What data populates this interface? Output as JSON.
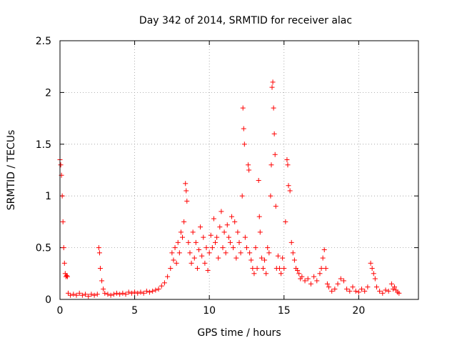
{
  "chart_data": {
    "type": "scatter",
    "title": "Day 342 of 2014, SRMTID for receiver alac",
    "xlabel": "GPS time / hours",
    "ylabel": "SRMTID / TECUs",
    "xlim": [
      0,
      24
    ],
    "ylim": [
      0,
      2.5
    ],
    "xticks": [
      0,
      5,
      10,
      15,
      20
    ],
    "yticks": [
      0,
      0.5,
      1,
      1.5,
      2,
      2.5
    ],
    "xtick_labels": [
      "0",
      "5",
      "10",
      "15",
      "20"
    ],
    "ytick_labels": [
      "0",
      "0.5",
      "1",
      "1.5",
      "2",
      "2.5"
    ],
    "grid": true,
    "marker": "+",
    "series": [
      {
        "name": "SRMTID",
        "color": "#ff0000",
        "points": [
          [
            0.0,
            1.35
          ],
          [
            0.05,
            1.3
          ],
          [
            0.1,
            1.2
          ],
          [
            0.15,
            1.0
          ],
          [
            0.2,
            0.75
          ],
          [
            0.25,
            0.5
          ],
          [
            0.3,
            0.35
          ],
          [
            0.35,
            0.25
          ],
          [
            0.4,
            0.22
          ],
          [
            0.45,
            0.23
          ],
          [
            0.5,
            0.22
          ],
          [
            0.55,
            0.06
          ],
          [
            0.7,
            0.04
          ],
          [
            0.9,
            0.05
          ],
          [
            1.1,
            0.04
          ],
          [
            1.3,
            0.06
          ],
          [
            1.5,
            0.04
          ],
          [
            1.7,
            0.05
          ],
          [
            1.9,
            0.03
          ],
          [
            2.1,
            0.05
          ],
          [
            2.3,
            0.04
          ],
          [
            2.5,
            0.05
          ],
          [
            2.6,
            0.5
          ],
          [
            2.65,
            0.45
          ],
          [
            2.7,
            0.3
          ],
          [
            2.8,
            0.18
          ],
          [
            2.9,
            0.1
          ],
          [
            3.0,
            0.06
          ],
          [
            3.2,
            0.05
          ],
          [
            3.4,
            0.04
          ],
          [
            3.6,
            0.05
          ],
          [
            3.8,
            0.06
          ],
          [
            4.0,
            0.05
          ],
          [
            4.2,
            0.06
          ],
          [
            4.4,
            0.05
          ],
          [
            4.6,
            0.07
          ],
          [
            4.8,
            0.06
          ],
          [
            5.0,
            0.07
          ],
          [
            5.2,
            0.06
          ],
          [
            5.4,
            0.07
          ],
          [
            5.6,
            0.06
          ],
          [
            5.8,
            0.08
          ],
          [
            6.0,
            0.07
          ],
          [
            6.2,
            0.08
          ],
          [
            6.4,
            0.09
          ],
          [
            6.6,
            0.1
          ],
          [
            6.8,
            0.13
          ],
          [
            7.0,
            0.16
          ],
          [
            7.2,
            0.22
          ],
          [
            7.4,
            0.3
          ],
          [
            7.5,
            0.45
          ],
          [
            7.6,
            0.38
          ],
          [
            7.7,
            0.5
          ],
          [
            7.8,
            0.35
          ],
          [
            7.9,
            0.55
          ],
          [
            8.0,
            0.45
          ],
          [
            8.1,
            0.65
          ],
          [
            8.2,
            0.6
          ],
          [
            8.3,
            0.75
          ],
          [
            8.4,
            1.12
          ],
          [
            8.45,
            1.05
          ],
          [
            8.5,
            0.95
          ],
          [
            8.6,
            0.55
          ],
          [
            8.7,
            0.45
          ],
          [
            8.8,
            0.35
          ],
          [
            8.9,
            0.65
          ],
          [
            9.0,
            0.4
          ],
          [
            9.1,
            0.55
          ],
          [
            9.2,
            0.3
          ],
          [
            9.3,
            0.48
          ],
          [
            9.4,
            0.7
          ],
          [
            9.5,
            0.42
          ],
          [
            9.6,
            0.6
          ],
          [
            9.7,
            0.35
          ],
          [
            9.8,
            0.5
          ],
          [
            9.9,
            0.28
          ],
          [
            10.0,
            0.45
          ],
          [
            10.1,
            0.62
          ],
          [
            10.2,
            0.5
          ],
          [
            10.3,
            0.78
          ],
          [
            10.4,
            0.55
          ],
          [
            10.5,
            0.6
          ],
          [
            10.6,
            0.4
          ],
          [
            10.7,
            0.7
          ],
          [
            10.8,
            0.85
          ],
          [
            10.9,
            0.5
          ],
          [
            11.0,
            0.65
          ],
          [
            11.1,
            0.45
          ],
          [
            11.2,
            0.72
          ],
          [
            11.3,
            0.6
          ],
          [
            11.4,
            0.55
          ],
          [
            11.5,
            0.8
          ],
          [
            11.6,
            0.5
          ],
          [
            11.7,
            0.75
          ],
          [
            11.8,
            0.4
          ],
          [
            11.9,
            0.65
          ],
          [
            12.0,
            0.55
          ],
          [
            12.1,
            0.45
          ],
          [
            12.2,
            1.0
          ],
          [
            12.25,
            1.85
          ],
          [
            12.3,
            1.65
          ],
          [
            12.35,
            1.5
          ],
          [
            12.4,
            0.6
          ],
          [
            12.5,
            0.5
          ],
          [
            12.6,
            1.3
          ],
          [
            12.65,
            1.25
          ],
          [
            12.7,
            0.45
          ],
          [
            12.8,
            0.38
          ],
          [
            12.9,
            0.3
          ],
          [
            13.0,
            0.25
          ],
          [
            13.1,
            0.5
          ],
          [
            13.2,
            0.3
          ],
          [
            13.3,
            1.15
          ],
          [
            13.35,
            0.8
          ],
          [
            13.4,
            0.65
          ],
          [
            13.5,
            0.4
          ],
          [
            13.6,
            0.3
          ],
          [
            13.7,
            0.38
          ],
          [
            13.8,
            0.25
          ],
          [
            13.9,
            0.5
          ],
          [
            14.0,
            0.45
          ],
          [
            14.1,
            1.0
          ],
          [
            14.15,
            1.3
          ],
          [
            14.2,
            2.05
          ],
          [
            14.25,
            2.1
          ],
          [
            14.3,
            1.85
          ],
          [
            14.35,
            1.6
          ],
          [
            14.4,
            1.4
          ],
          [
            14.45,
            0.9
          ],
          [
            14.5,
            0.3
          ],
          [
            14.6,
            0.42
          ],
          [
            14.7,
            0.3
          ],
          [
            14.8,
            0.25
          ],
          [
            14.9,
            0.4
          ],
          [
            15.0,
            0.3
          ],
          [
            15.1,
            0.75
          ],
          [
            15.2,
            1.35
          ],
          [
            15.25,
            1.3
          ],
          [
            15.3,
            1.1
          ],
          [
            15.4,
            1.05
          ],
          [
            15.5,
            0.55
          ],
          [
            15.6,
            0.45
          ],
          [
            15.7,
            0.38
          ],
          [
            15.8,
            0.3
          ],
          [
            15.9,
            0.28
          ],
          [
            16.0,
            0.25
          ],
          [
            16.1,
            0.2
          ],
          [
            16.2,
            0.22
          ],
          [
            16.4,
            0.18
          ],
          [
            16.6,
            0.2
          ],
          [
            16.8,
            0.15
          ],
          [
            17.0,
            0.22
          ],
          [
            17.2,
            0.18
          ],
          [
            17.4,
            0.25
          ],
          [
            17.5,
            0.3
          ],
          [
            17.6,
            0.4
          ],
          [
            17.7,
            0.48
          ],
          [
            17.8,
            0.3
          ],
          [
            17.9,
            0.15
          ],
          [
            18.0,
            0.12
          ],
          [
            18.2,
            0.08
          ],
          [
            18.4,
            0.1
          ],
          [
            18.6,
            0.15
          ],
          [
            18.8,
            0.2
          ],
          [
            19.0,
            0.18
          ],
          [
            19.2,
            0.1
          ],
          [
            19.4,
            0.08
          ],
          [
            19.6,
            0.12
          ],
          [
            19.8,
            0.08
          ],
          [
            20.0,
            0.07
          ],
          [
            20.2,
            0.1
          ],
          [
            20.4,
            0.08
          ],
          [
            20.6,
            0.12
          ],
          [
            20.8,
            0.35
          ],
          [
            20.9,
            0.3
          ],
          [
            21.0,
            0.25
          ],
          [
            21.1,
            0.2
          ],
          [
            21.2,
            0.12
          ],
          [
            21.4,
            0.08
          ],
          [
            21.6,
            0.06
          ],
          [
            21.8,
            0.09
          ],
          [
            22.0,
            0.08
          ],
          [
            22.2,
            0.15
          ],
          [
            22.3,
            0.1
          ],
          [
            22.4,
            0.12
          ],
          [
            22.5,
            0.09
          ],
          [
            22.6,
            0.07
          ],
          [
            22.7,
            0.06
          ]
        ]
      }
    ]
  }
}
